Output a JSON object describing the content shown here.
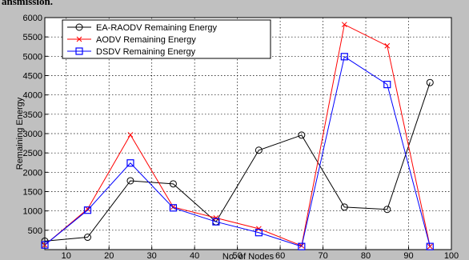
{
  "caption": "ansmission.",
  "chart_data": {
    "type": "line",
    "title": "",
    "xlabel": "No. of Nodes",
    "ylabel": "Remaining Energy",
    "xlim": [
      5,
      100
    ],
    "ylim": [
      0,
      6000
    ],
    "xticks": [
      10,
      20,
      30,
      40,
      50,
      60,
      70,
      80,
      90,
      100
    ],
    "yticks": [
      500,
      1000,
      1500,
      2000,
      2500,
      3000,
      3500,
      4000,
      4500,
      5000,
      5500,
      6000
    ],
    "grid": true,
    "legend_position": "top-left",
    "x": [
      5,
      15,
      25,
      35,
      45,
      55,
      65,
      75,
      85,
      95
    ],
    "series": [
      {
        "name": "EA-RAODV Remaining Energy",
        "color": "#000000",
        "marker": "circle",
        "values": [
          220,
          320,
          1780,
          1700,
          720,
          2570,
          2960,
          1100,
          1040,
          4320
        ]
      },
      {
        "name": "AODV Remaining Energy",
        "color": "#ff0000",
        "marker": "x",
        "values": [
          120,
          1050,
          2970,
          1100,
          820,
          540,
          100,
          5820,
          5270,
          80
        ]
      },
      {
        "name": "DSDV Remaining Energy",
        "color": "#0000ff",
        "marker": "square",
        "values": [
          120,
          1020,
          2240,
          1080,
          720,
          440,
          80,
          4990,
          4270,
          80
        ]
      }
    ]
  }
}
